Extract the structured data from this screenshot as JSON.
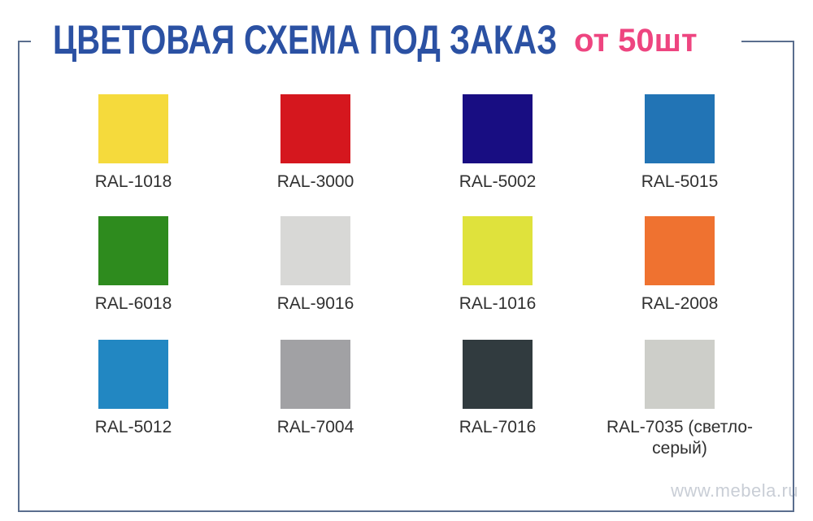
{
  "header": {
    "title": "ЦВЕТОВАЯ СХЕМА ПОД ЗАКАЗ",
    "title_color": "#2b51a3",
    "badge": "от 50шт",
    "badge_color": "#ee4580"
  },
  "frame_color": "#5a6e8e",
  "swatches": [
    {
      "label": "RAL-1018",
      "color": "#f5da3c"
    },
    {
      "label": "RAL-3000",
      "color": "#d5171e"
    },
    {
      "label": "RAL-5002",
      "color": "#180d82"
    },
    {
      "label": "RAL-5015",
      "color": "#2274b5"
    },
    {
      "label": "RAL-6018",
      "color": "#2e8b1e"
    },
    {
      "label": "RAL-9016",
      "color": "#d8d8d6"
    },
    {
      "label": "RAL-1016",
      "color": "#dfe23c"
    },
    {
      "label": "RAL-2008",
      "color": "#ef7230"
    },
    {
      "label": "RAL-5012",
      "color": "#2287c2"
    },
    {
      "label": "RAL-7004",
      "color": "#a1a1a4"
    },
    {
      "label": "RAL-7016",
      "color": "#313b3f"
    },
    {
      "label": "RAL-7035 (светло-серый)",
      "color": "#cdcec9"
    }
  ],
  "watermark": "www.mebela.ru"
}
